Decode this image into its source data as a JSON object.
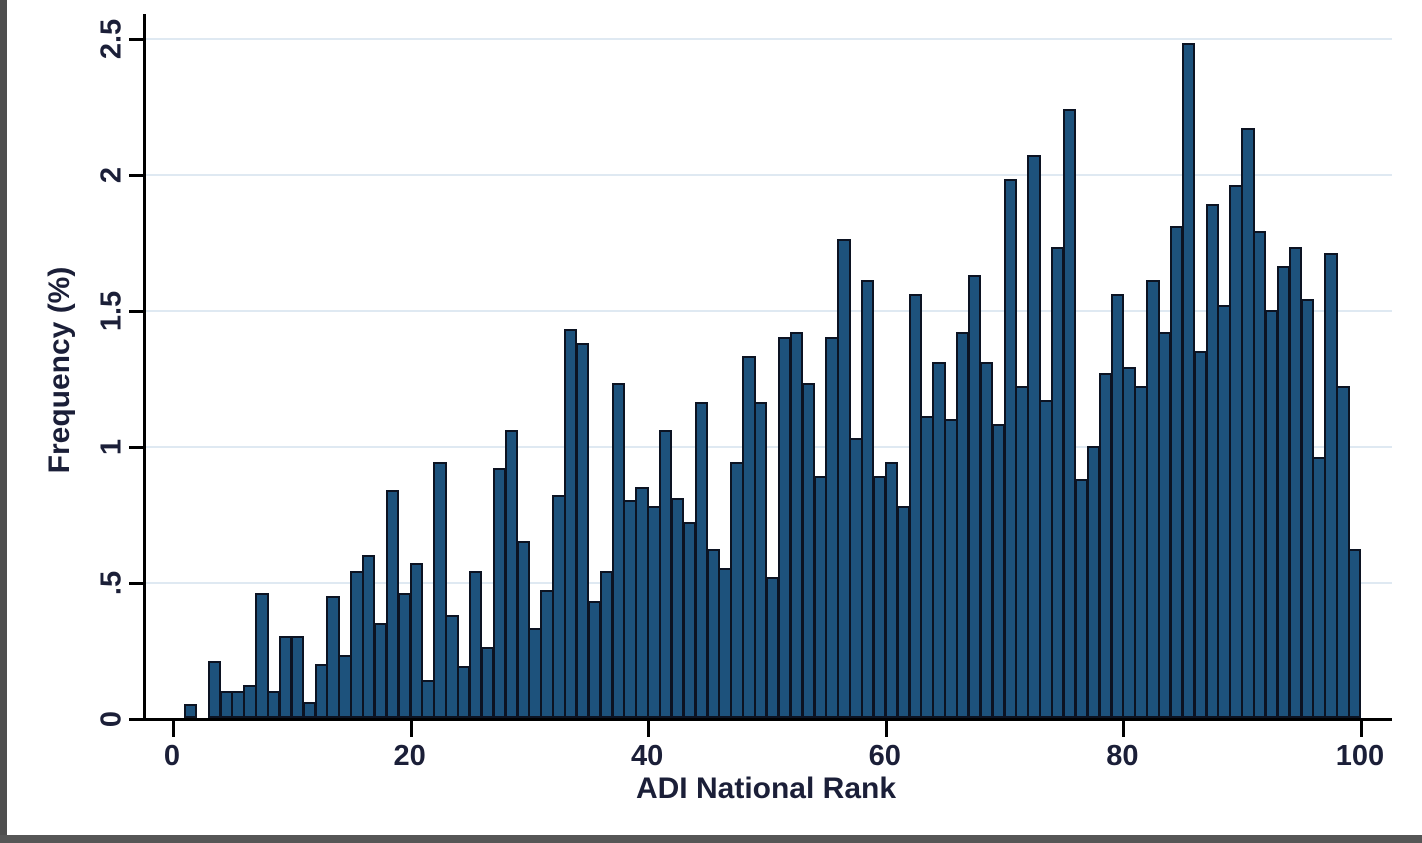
{
  "figure": {
    "xlabel": "ADI National Rank",
    "ylabel": "Frequency (%)"
  },
  "chart_data": {
    "type": "bar",
    "subtype": "histogram",
    "title": "",
    "xlabel": "ADI National Rank",
    "ylabel": "Frequency (%)",
    "x_ticks": [
      0,
      20,
      40,
      60,
      80,
      100
    ],
    "y_tick_labels": [
      "0",
      ".5",
      "1",
      "1.5",
      "2",
      "2.5"
    ],
    "xlim": [
      0,
      100
    ],
    "ylim": [
      0,
      2.6
    ],
    "grid": "horizontal gridlines at y-ticks",
    "legend": "none",
    "bin_width": 1,
    "x": [
      1,
      2,
      3,
      4,
      5,
      6,
      7,
      8,
      9,
      10,
      11,
      12,
      13,
      14,
      15,
      16,
      17,
      18,
      19,
      20,
      21,
      22,
      23,
      24,
      25,
      26,
      27,
      28,
      29,
      30,
      31,
      32,
      33,
      34,
      35,
      36,
      37,
      38,
      39,
      40,
      41,
      42,
      43,
      44,
      45,
      46,
      47,
      48,
      49,
      50,
      51,
      52,
      53,
      54,
      55,
      56,
      57,
      58,
      59,
      60,
      61,
      62,
      63,
      64,
      65,
      66,
      67,
      68,
      69,
      70,
      71,
      72,
      73,
      74,
      75,
      76,
      77,
      78,
      79,
      80,
      81,
      82,
      83,
      84,
      85,
      86,
      87,
      88,
      89,
      90,
      91,
      92,
      93,
      94,
      95,
      96,
      97,
      98,
      99,
      100
    ],
    "values": [
      0,
      0.05,
      0,
      0.21,
      0.1,
      0.1,
      0.12,
      0.46,
      0.1,
      0.3,
      0.3,
      0.06,
      0.2,
      0.45,
      0.23,
      0.54,
      0.6,
      0.35,
      0.84,
      0.46,
      0.57,
      0.14,
      0.94,
      0.38,
      0.19,
      0.54,
      0.26,
      0.92,
      1.06,
      0.65,
      0.33,
      0.47,
      0.82,
      1.43,
      1.38,
      0.43,
      0.54,
      1.23,
      0.8,
      0.85,
      0.78,
      1.06,
      0.81,
      0.72,
      1.16,
      0.62,
      0.55,
      0.94,
      1.33,
      1.16,
      0.52,
      1.4,
      1.42,
      1.23,
      0.89,
      1.4,
      1.76,
      1.03,
      1.61,
      0.89,
      0.94,
      0.78,
      1.56,
      1.11,
      1.31,
      1.1,
      1.42,
      1.63,
      1.31,
      1.08,
      1.98,
      1.22,
      2.07,
      1.17,
      1.73,
      2.24,
      0.88,
      1.0,
      1.27,
      1.56,
      1.29,
      1.22,
      1.61,
      1.42,
      1.81,
      2.48,
      1.35,
      1.89,
      1.52,
      1.96,
      2.17,
      1.79,
      1.5,
      1.66,
      1.73,
      1.54,
      0.96,
      1.71,
      1.22,
      0.62
    ],
    "bar_color": "#1d527c",
    "bar_border_color": "#0c1322",
    "gridline_color": "#dfe9f2",
    "axis_color": "#000000",
    "label_color": "#1b1f38"
  }
}
